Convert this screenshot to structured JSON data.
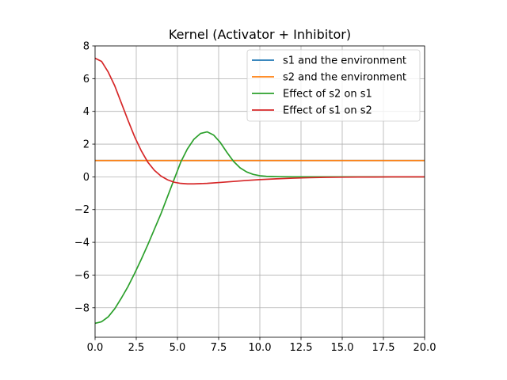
{
  "chart_data": {
    "type": "line",
    "title": "Kernel (Activator + Inhibitor)",
    "xlabel": "",
    "ylabel": "",
    "xlim": [
      0,
      20
    ],
    "ylim": [
      -9.8,
      8
    ],
    "xticks": [
      0,
      2.5,
      5,
      7.5,
      10,
      12.5,
      15,
      17.5,
      20
    ],
    "xtick_labels": [
      "0.0",
      "2.5",
      "5.0",
      "7.5",
      "10.0",
      "12.5",
      "15.0",
      "17.5",
      "20.0"
    ],
    "yticks": [
      -8,
      -6,
      -4,
      -2,
      0,
      2,
      4,
      6,
      8
    ],
    "ytick_labels": [
      "−8",
      "−6",
      "−4",
      "−2",
      "0",
      "2",
      "4",
      "6",
      "8"
    ],
    "grid": true,
    "legend_position": "top-right",
    "series": [
      {
        "name": "s1 and the environment",
        "color": "#1f77b4",
        "x": [
          0,
          20
        ],
        "y": [
          1,
          1
        ]
      },
      {
        "name": "s2 and the environment",
        "color": "#ff7f0e",
        "x": [
          0,
          20
        ],
        "y": [
          1,
          1
        ]
      },
      {
        "name": "Effect of s2 on s1",
        "color": "#2ca02c",
        "x": [
          0,
          0.4,
          0.8,
          1.2,
          1.6,
          2.0,
          2.4,
          2.8,
          3.2,
          3.6,
          4.0,
          4.4,
          4.8,
          5.2,
          5.6,
          6.0,
          6.4,
          6.8,
          7.2,
          7.6,
          8.0,
          8.4,
          8.8,
          9.2,
          9.6,
          10.0,
          10.4,
          10.8,
          11.2,
          12.0,
          13.0,
          14.0,
          16.0,
          18.0,
          20.0
        ],
        "y": [
          -8.95,
          -8.85,
          -8.55,
          -8.05,
          -7.4,
          -6.7,
          -5.9,
          -5.05,
          -4.15,
          -3.2,
          -2.25,
          -1.2,
          -0.15,
          0.9,
          1.7,
          2.3,
          2.65,
          2.75,
          2.55,
          2.1,
          1.5,
          0.95,
          0.55,
          0.3,
          0.15,
          0.07,
          0.03,
          0.02,
          0.01,
          0.0,
          0.0,
          0.0,
          0.0,
          0.0,
          0.0
        ]
      },
      {
        "name": "Effect of s1 on s2",
        "color": "#d62728",
        "x": [
          0,
          0.4,
          0.8,
          1.2,
          1.6,
          2.0,
          2.4,
          2.8,
          3.2,
          3.6,
          4.0,
          4.4,
          4.8,
          5.2,
          5.6,
          6.0,
          6.8,
          7.6,
          8.4,
          9.2,
          10.0,
          11.0,
          12.0,
          13.0,
          14.0,
          15.0,
          16.0,
          17.0,
          18.0,
          19.0,
          20.0
        ],
        "y": [
          7.25,
          7.05,
          6.4,
          5.55,
          4.5,
          3.45,
          2.45,
          1.6,
          0.9,
          0.4,
          0.05,
          -0.18,
          -0.33,
          -0.4,
          -0.43,
          -0.43,
          -0.4,
          -0.34,
          -0.28,
          -0.22,
          -0.17,
          -0.12,
          -0.08,
          -0.05,
          -0.03,
          -0.02,
          -0.01,
          -0.01,
          0.0,
          0.0,
          0.0
        ]
      }
    ]
  }
}
